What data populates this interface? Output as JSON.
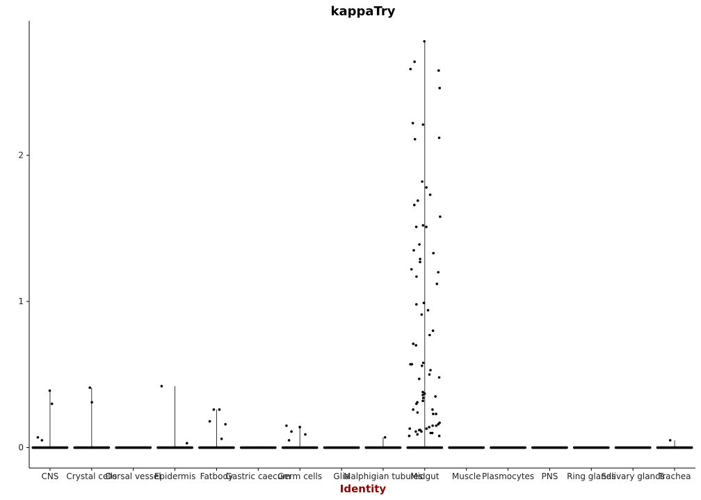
{
  "chart_data": {
    "type": "scatter",
    "subtype": "violin-jitter",
    "title": "kappaTry",
    "xlabel": "Identity",
    "ylabel": "",
    "ylim": [
      -0.14,
      2.92
    ],
    "yticks": [
      0,
      1,
      2
    ],
    "grid": false,
    "legend": "none",
    "colors": {
      "point": "#000000",
      "axis": "#000000",
      "xlabel": "#8b0000"
    },
    "categories": [
      "CNS",
      "Crystal cells",
      "Dorsal vessel",
      "Epidermis",
      "Fatbody",
      "Gastric caecum",
      "Germ cells",
      "Glia",
      "Malphigian tubules",
      "Midgut",
      "Muscle",
      "Plasmocytes",
      "PNS",
      "Ring glands",
      "Salivary glands",
      "Trachea"
    ],
    "series": [
      {
        "category": "CNS",
        "max": 0.39,
        "nonzero": [
          0.39,
          0.3,
          0.07,
          0.05
        ]
      },
      {
        "category": "Crystal cells",
        "max": 0.41,
        "nonzero": [
          0.41,
          0.31
        ]
      },
      {
        "category": "Dorsal vessel",
        "max": 0,
        "nonzero": []
      },
      {
        "category": "Epidermis",
        "max": 0.42,
        "nonzero": [
          0.42,
          0.03
        ]
      },
      {
        "category": "Fatbody",
        "max": 0.26,
        "nonzero": [
          0.26,
          0.26,
          0.18,
          0.16,
          0.06
        ]
      },
      {
        "category": "Gastric caecum",
        "max": 0,
        "nonzero": []
      },
      {
        "category": "Germ cells",
        "max": 0.15,
        "nonzero": [
          0.15,
          0.14,
          0.11,
          0.09,
          0.05
        ]
      },
      {
        "category": "Glia",
        "max": 0,
        "nonzero": []
      },
      {
        "category": "Malphigian tubules",
        "max": 0.07,
        "nonzero": [
          0.07
        ]
      },
      {
        "category": "Midgut",
        "max": 2.78,
        "nonzero": [
          2.78,
          2.64,
          2.59,
          2.58,
          2.46,
          2.22,
          2.21,
          2.12,
          2.11,
          1.82,
          1.78,
          1.73,
          1.69,
          1.66,
          1.58,
          1.52,
          1.51,
          1.51,
          1.39,
          1.35,
          1.33,
          1.29,
          1.27,
          1.22,
          1.2,
          1.17,
          1.12,
          0.99,
          0.98,
          0.94,
          0.91,
          0.8,
          0.77,
          0.71,
          0.7,
          0.58,
          0.57,
          0.57,
          0.56,
          0.53,
          0.5,
          0.48,
          0.47,
          0.38,
          0.37,
          0.36,
          0.35,
          0.34,
          0.32,
          0.31,
          0.3,
          0.26,
          0.26,
          0.24,
          0.23,
          0.23,
          0.17,
          0.16,
          0.15,
          0.15,
          0.14,
          0.13,
          0.13,
          0.12,
          0.12,
          0.11,
          0.11,
          0.1,
          0.1,
          0.09,
          0.08,
          0.08
        ]
      },
      {
        "category": "Muscle",
        "max": 0,
        "nonzero": []
      },
      {
        "category": "Plasmocytes",
        "max": 0,
        "nonzero": []
      },
      {
        "category": "PNS",
        "max": 0,
        "nonzero": []
      },
      {
        "category": "Ring glands",
        "max": 0,
        "nonzero": []
      },
      {
        "category": "Salivary glands",
        "max": 0,
        "nonzero": []
      },
      {
        "category": "Trachea",
        "max": 0.05,
        "nonzero": [
          0.05
        ]
      }
    ]
  }
}
